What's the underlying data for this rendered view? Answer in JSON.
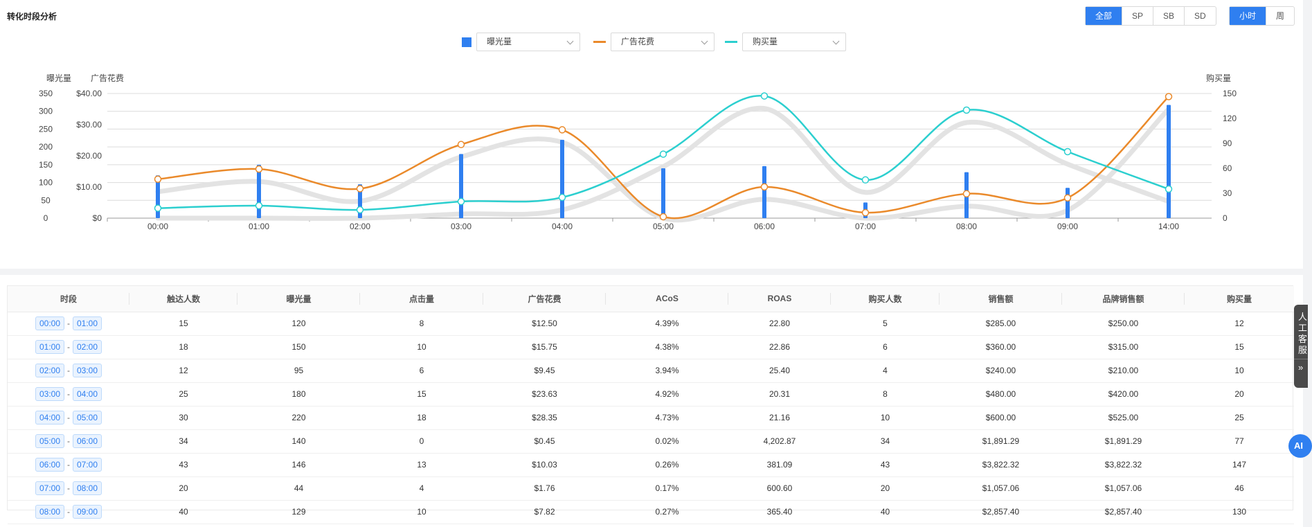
{
  "title": "转化时段分析",
  "filter_tabs": [
    "全部",
    "SP",
    "SB",
    "SD"
  ],
  "granularity_tabs": [
    "小时",
    "周"
  ],
  "legend": {
    "metric1": "曝光量",
    "metric2": "广告花费",
    "metric3": "购买量"
  },
  "colors": {
    "impressions": "#2f7ff0",
    "spend": "#ea8a2b",
    "purchases": "#2ccfcf",
    "shadow": "#e3e3e3",
    "accent": "#2f7ff0"
  },
  "chart_data": {
    "type": "bar+line",
    "categories": [
      "00:00",
      "01:00",
      "02:00",
      "03:00",
      "04:00",
      "05:00",
      "06:00",
      "07:00",
      "08:00",
      "09:00",
      "14:00"
    ],
    "axes": {
      "left_outer": {
        "label": "曝光量",
        "ylim": [
          0,
          350
        ],
        "ticks": [
          "350",
          "300",
          "250",
          "200",
          "150",
          "100",
          "50",
          "0"
        ]
      },
      "left_inner": {
        "label": "广告花费",
        "ylim": [
          0,
          40
        ],
        "ticks": [
          "$40.00",
          "$30.00",
          "$20.00",
          "$10.00",
          "$0"
        ]
      },
      "right": {
        "label": "购买量",
        "ylim": [
          0,
          150
        ],
        "ticks": [
          "150",
          "120",
          "90",
          "60",
          "30",
          "0"
        ]
      }
    },
    "series": [
      {
        "name": "曝光量",
        "type": "bar",
        "axis": "left_outer",
        "values": [
          120,
          150,
          95,
          180,
          220,
          140,
          146,
          44,
          129,
          85,
          318
        ]
      },
      {
        "name": "广告花费",
        "type": "line",
        "axis": "left_inner",
        "values": [
          12.5,
          15.75,
          9.45,
          23.63,
          28.35,
          0.45,
          10.03,
          1.76,
          7.82,
          6.5,
          39.0
        ]
      },
      {
        "name": "购买量",
        "type": "line",
        "axis": "right",
        "values": [
          12,
          15,
          10,
          20,
          25,
          77,
          147,
          46,
          130,
          80,
          35
        ]
      }
    ],
    "grid": true
  },
  "table": {
    "headers": [
      "时段",
      "触达人数",
      "曝光量",
      "点击量",
      "广告花费",
      "ACoS",
      "ROAS",
      "购买人数",
      "销售额",
      "品牌销售额",
      "购买量"
    ],
    "rows": [
      {
        "start": "00:00",
        "end": "01:00",
        "cells": [
          "15",
          "120",
          "8",
          "$12.50",
          "4.39%",
          "22.80",
          "5",
          "$285.00",
          "$250.00",
          "12"
        ]
      },
      {
        "start": "01:00",
        "end": "02:00",
        "cells": [
          "18",
          "150",
          "10",
          "$15.75",
          "4.38%",
          "22.86",
          "6",
          "$360.00",
          "$315.00",
          "15"
        ]
      },
      {
        "start": "02:00",
        "end": "03:00",
        "cells": [
          "12",
          "95",
          "6",
          "$9.45",
          "3.94%",
          "25.40",
          "4",
          "$240.00",
          "$210.00",
          "10"
        ]
      },
      {
        "start": "03:00",
        "end": "04:00",
        "cells": [
          "25",
          "180",
          "15",
          "$23.63",
          "4.92%",
          "20.31",
          "8",
          "$480.00",
          "$420.00",
          "20"
        ]
      },
      {
        "start": "04:00",
        "end": "05:00",
        "cells": [
          "30",
          "220",
          "18",
          "$28.35",
          "4.73%",
          "21.16",
          "10",
          "$600.00",
          "$525.00",
          "25"
        ]
      },
      {
        "start": "05:00",
        "end": "06:00",
        "cells": [
          "34",
          "140",
          "0",
          "$0.45",
          "0.02%",
          "4,202.87",
          "34",
          "$1,891.29",
          "$1,891.29",
          "77"
        ]
      },
      {
        "start": "06:00",
        "end": "07:00",
        "cells": [
          "43",
          "146",
          "13",
          "$10.03",
          "0.26%",
          "381.09",
          "43",
          "$3,822.32",
          "$3,822.32",
          "147"
        ]
      },
      {
        "start": "07:00",
        "end": "08:00",
        "cells": [
          "20",
          "44",
          "4",
          "$1.76",
          "0.17%",
          "600.60",
          "20",
          "$1,057.06",
          "$1,057.06",
          "46"
        ]
      },
      {
        "start": "08:00",
        "end": "09:00",
        "cells": [
          "40",
          "129",
          "10",
          "$7.82",
          "0.27%",
          "365.40",
          "40",
          "$2,857.40",
          "$2,857.40",
          "130"
        ]
      }
    ]
  },
  "side_tab": {
    "chars": [
      "人",
      "工",
      "客",
      "服"
    ],
    "arrow": "»"
  },
  "ai_badge": "AI"
}
